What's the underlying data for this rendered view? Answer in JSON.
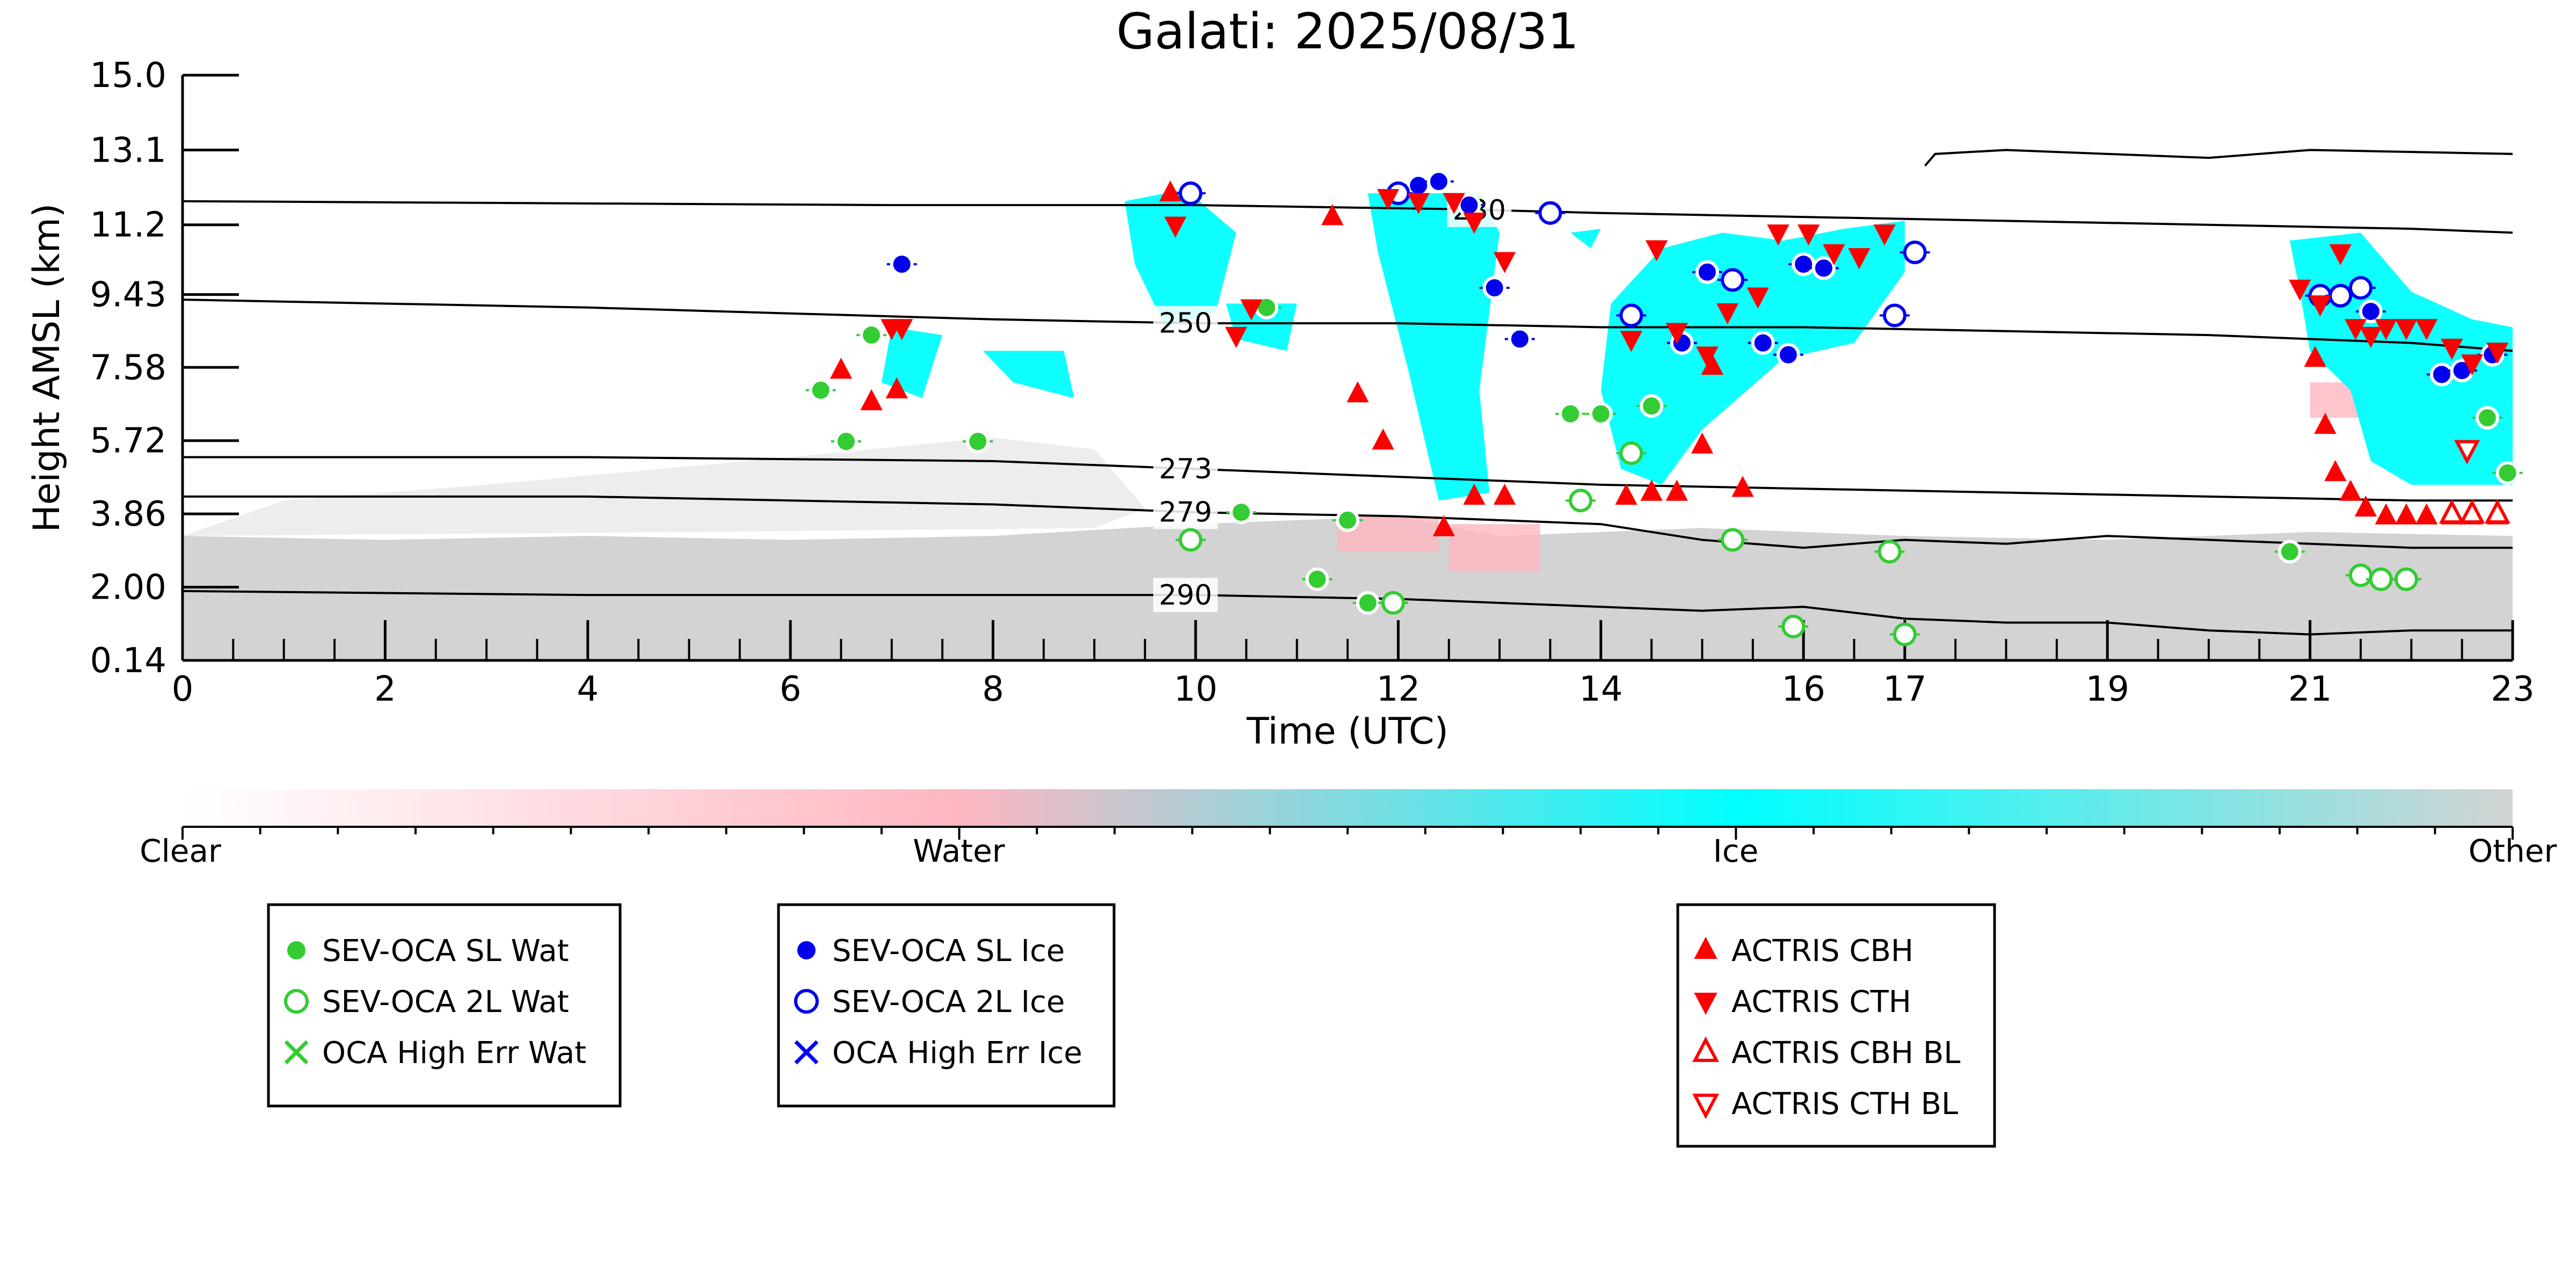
{
  "chart_data": {
    "type": "scatter",
    "title": "Galati: 2025/08/31",
    "xlabel": "Time (UTC)",
    "ylabel": "Height AMSL (km)",
    "xlim": [
      0,
      23
    ],
    "ylim": [
      0.14,
      15.0
    ],
    "x_ticks": [
      "0",
      "2",
      "4",
      "6",
      "8",
      "10",
      "12",
      "14",
      "16",
      "17",
      "19",
      "21",
      "23"
    ],
    "y_ticks": [
      "0.14",
      "2.00",
      "3.86",
      "5.72",
      "7.58",
      "9.43",
      "11.2",
      "13.1",
      "15.0"
    ],
    "colorbar": {
      "labels": [
        "Clear",
        "Water",
        "Ice",
        "Other"
      ],
      "colors": [
        "#ffffff",
        "#ffb6c1",
        "#00ffff",
        "#d3d3d3"
      ]
    },
    "background_image": "lidar cloud classification mask (clear / water / ice / other)",
    "contours": [
      {
        "label": "230",
        "x": [
          0,
          7,
          10,
          12.5,
          14,
          16,
          18,
          20,
          22,
          23
        ],
        "y": [
          11.8,
          11.7,
          11.7,
          11.6,
          11.5,
          11.4,
          11.3,
          11.2,
          11.1,
          11.0
        ]
      },
      {
        "label": "250",
        "x": [
          0,
          4,
          8,
          10,
          12,
          14,
          16,
          18,
          20,
          22,
          23
        ],
        "y": [
          9.3,
          9.1,
          8.8,
          8.7,
          8.7,
          8.6,
          8.6,
          8.5,
          8.4,
          8.2,
          8.0
        ]
      },
      {
        "label": "273",
        "x": [
          0,
          4,
          8,
          10,
          12,
          14,
          16,
          18,
          20,
          22,
          23
        ],
        "y": [
          5.3,
          5.3,
          5.2,
          5.0,
          4.8,
          4.6,
          4.5,
          4.4,
          4.3,
          4.2,
          4.2
        ]
      },
      {
        "label": "279",
        "x": [
          0,
          4,
          8,
          10,
          12,
          14,
          15,
          16,
          17,
          18,
          19,
          20,
          21,
          22,
          23
        ],
        "y": [
          4.3,
          4.3,
          4.1,
          3.9,
          3.8,
          3.6,
          3.2,
          3.0,
          3.2,
          3.1,
          3.3,
          3.2,
          3.1,
          3.0,
          3.0
        ]
      },
      {
        "label": "290",
        "x": [
          0,
          4,
          8,
          10,
          12,
          14,
          15,
          16,
          17,
          18,
          19,
          20,
          21,
          22,
          23
        ],
        "y": [
          1.9,
          1.8,
          1.8,
          1.8,
          1.7,
          1.5,
          1.4,
          1.5,
          1.2,
          1.1,
          1.1,
          0.9,
          0.8,
          0.9,
          0.9
        ]
      },
      {
        "label": "",
        "x": [
          17.2,
          17.3,
          18,
          20,
          21,
          23
        ],
        "y": [
          12.7,
          13.0,
          13.1,
          12.9,
          13.1,
          13.0
        ]
      }
    ],
    "series": [
      {
        "name": "SEV-OCA SL Wat",
        "marker": "filled-circle",
        "color": "#33cc33",
        "x": [
          6.3,
          6.55,
          6.8,
          7.85,
          10.45,
          10.7,
          11.2,
          11.5,
          11.7,
          13.7,
          14.0,
          14.5,
          20.8,
          22.75,
          22.95
        ],
        "y": [
          7.0,
          5.7,
          8.4,
          5.7,
          3.9,
          9.1,
          2.2,
          3.7,
          1.6,
          6.4,
          6.4,
          6.6,
          2.9,
          6.3,
          4.9
        ]
      },
      {
        "name": "SEV-OCA 2L Wat",
        "marker": "open-circle",
        "color": "#33cc33",
        "x": [
          9.95,
          11.95,
          13.8,
          14.3,
          15.3,
          15.9,
          16.85,
          17.0,
          21.5,
          21.7,
          21.95
        ],
        "y": [
          3.2,
          1.6,
          4.2,
          5.4,
          3.2,
          1.0,
          2.9,
          0.8,
          2.3,
          2.2,
          2.2
        ]
      },
      {
        "name": "OCA High Err Wat",
        "marker": "x",
        "color": "#33cc33",
        "x": [],
        "y": []
      },
      {
        "name": "SEV-OCA SL Ice",
        "marker": "filled-circle",
        "color": "#0000ee",
        "x": [
          7.1,
          12.2,
          12.4,
          12.7,
          12.95,
          13.2,
          14.8,
          15.05,
          15.6,
          15.85,
          16.0,
          16.2,
          21.6,
          22.3,
          22.5,
          22.8
        ],
        "y": [
          10.2,
          12.2,
          12.3,
          11.7,
          9.6,
          8.3,
          8.2,
          10.0,
          8.2,
          7.9,
          10.2,
          10.1,
          9.0,
          7.4,
          7.5,
          7.9
        ]
      },
      {
        "name": "SEV-OCA 2L Ice",
        "marker": "open-circle",
        "color": "#0000ee",
        "x": [
          9.95,
          12.0,
          13.5,
          14.3,
          15.3,
          16.9,
          17.1,
          21.1,
          21.3,
          21.5
        ],
        "y": [
          12.0,
          12.0,
          11.5,
          8.9,
          9.8,
          8.9,
          10.5,
          9.4,
          9.4,
          9.6
        ]
      },
      {
        "name": "OCA High Err Ice",
        "marker": "x",
        "color": "#0000ee",
        "x": [],
        "y": []
      },
      {
        "name": "ACTRIS CBH",
        "marker": "triangle-up",
        "color": "#ff0000",
        "x": [
          6.5,
          6.8,
          7.05,
          9.75,
          11.35,
          11.6,
          11.85,
          12.45,
          12.75,
          13.05,
          14.25,
          14.5,
          14.75,
          15.0,
          15.1,
          15.4,
          21.05,
          21.15,
          21.25,
          21.4,
          21.55,
          21.75,
          21.95,
          22.15,
          22.4,
          22.6,
          22.85
        ],
        "y": [
          7.5,
          6.7,
          7.0,
          12.0,
          11.4,
          6.9,
          5.7,
          3.5,
          4.3,
          4.3,
          4.3,
          4.4,
          4.4,
          5.6,
          7.6,
          4.5,
          7.8,
          6.1,
          4.9,
          4.4,
          4.0,
          3.8,
          3.8,
          3.8,
          3.8,
          3.8,
          3.8
        ]
      },
      {
        "name": "ACTRIS CTH",
        "marker": "triangle-down",
        "color": "#ff0000",
        "x": [
          7.0,
          7.1,
          9.8,
          10.4,
          10.55,
          11.9,
          12.2,
          12.55,
          12.75,
          13.05,
          14.3,
          14.55,
          14.75,
          15.05,
          15.25,
          15.55,
          15.75,
          16.05,
          16.3,
          16.55,
          16.8,
          20.9,
          21.1,
          21.3,
          21.45,
          21.6,
          21.75,
          21.95,
          22.15,
          22.4,
          22.6,
          22.85
        ],
        "y": [
          8.6,
          8.6,
          11.2,
          8.4,
          9.1,
          11.9,
          11.8,
          11.8,
          11.3,
          10.3,
          8.3,
          10.6,
          8.5,
          7.9,
          9.0,
          9.4,
          11.0,
          11.0,
          10.5,
          10.4,
          11.0,
          9.6,
          9.2,
          10.5,
          8.6,
          8.4,
          8.6,
          8.6,
          8.6,
          8.1,
          7.7,
          8.0
        ]
      },
      {
        "name": "ACTRIS CBH BL",
        "marker": "open-triangle-up",
        "color": "#ff0000",
        "x": [
          22.4,
          22.6,
          22.85
        ],
        "y": [
          3.85,
          3.85,
          3.85
        ]
      },
      {
        "name": "ACTRIS CTH BL",
        "marker": "open-triangle-down",
        "color": "#ff0000",
        "x": [
          22.55
        ],
        "y": [
          5.5
        ]
      }
    ]
  },
  "legends": [
    {
      "items": [
        {
          "label": "SEV-OCA SL Wat",
          "marker": "filled-circle",
          "color": "#33cc33"
        },
        {
          "label": "SEV-OCA 2L Wat",
          "marker": "open-circle",
          "color": "#33cc33"
        },
        {
          "label": "OCA High Err Wat",
          "marker": "x",
          "color": "#33cc33"
        }
      ]
    },
    {
      "items": [
        {
          "label": "SEV-OCA SL Ice",
          "marker": "filled-circle",
          "color": "#0000ee"
        },
        {
          "label": "SEV-OCA 2L Ice",
          "marker": "open-circle",
          "color": "#0000ee"
        },
        {
          "label": "OCA High Err Ice",
          "marker": "x",
          "color": "#0000ee"
        }
      ]
    },
    {
      "items": [
        {
          "label": "ACTRIS CBH",
          "marker": "triangle-up",
          "color": "#ff0000"
        },
        {
          "label": "ACTRIS CTH",
          "marker": "triangle-down",
          "color": "#ff0000"
        },
        {
          "label": "ACTRIS CBH BL",
          "marker": "open-triangle-up",
          "color": "#ff0000"
        },
        {
          "label": "ACTRIS CTH BL",
          "marker": "open-triangle-down",
          "color": "#ff0000"
        }
      ]
    }
  ]
}
